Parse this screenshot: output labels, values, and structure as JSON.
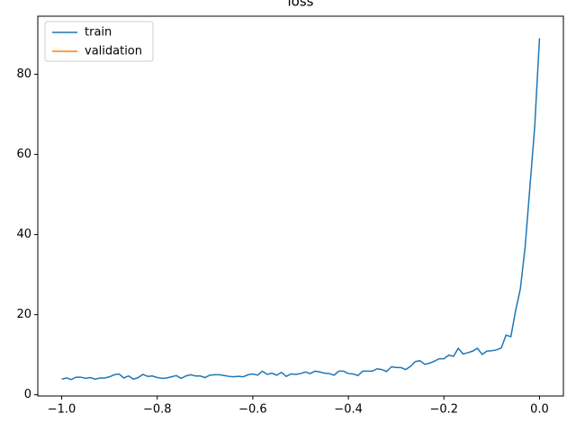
{
  "chart_data": {
    "type": "line",
    "title": "loss",
    "x": [
      -1.0,
      -0.99,
      -0.98,
      -0.97,
      -0.96,
      -0.95,
      -0.94,
      -0.93,
      -0.92,
      -0.91,
      -0.9,
      -0.89,
      -0.88,
      -0.87,
      -0.86,
      -0.85,
      -0.84,
      -0.83,
      -0.82,
      -0.81,
      -0.8,
      -0.79,
      -0.78,
      -0.77,
      -0.76,
      -0.75,
      -0.74,
      -0.73,
      -0.72,
      -0.71,
      -0.7,
      -0.69,
      -0.68,
      -0.67,
      -0.66,
      -0.65,
      -0.64,
      -0.63,
      -0.62,
      -0.61,
      -0.6,
      -0.59,
      -0.58,
      -0.57,
      -0.56,
      -0.55,
      -0.54,
      -0.53,
      -0.52,
      -0.51,
      -0.5,
      -0.49,
      -0.48,
      -0.47,
      -0.46,
      -0.45,
      -0.44,
      -0.43,
      -0.42,
      -0.41,
      -0.4,
      -0.39,
      -0.38,
      -0.37,
      -0.36,
      -0.35,
      -0.34,
      -0.33,
      -0.32,
      -0.31,
      -0.3,
      -0.29,
      -0.28,
      -0.27,
      -0.26,
      -0.25,
      -0.24,
      -0.23,
      -0.22,
      -0.21,
      -0.2,
      -0.19,
      -0.18,
      -0.17,
      -0.16,
      -0.15,
      -0.14,
      -0.13,
      -0.12,
      -0.11,
      -0.1,
      -0.09,
      -0.08,
      -0.07,
      -0.06,
      -0.05,
      -0.04,
      -0.03,
      -0.02,
      -0.01,
      0.0
    ],
    "series": [
      {
        "name": "train",
        "color": "#1f77b4",
        "values": [
          3.9,
          4.2,
          3.8,
          4.4,
          4.4,
          4.1,
          4.3,
          3.9,
          4.2,
          4.2,
          4.5,
          5.0,
          5.2,
          4.2,
          4.7,
          3.9,
          4.3,
          5.1,
          4.6,
          4.7,
          4.3,
          4.1,
          4.2,
          4.5,
          4.8,
          4.1,
          4.7,
          5.0,
          4.7,
          4.7,
          4.3,
          4.9,
          5.0,
          5.0,
          4.8,
          4.6,
          4.5,
          4.6,
          4.5,
          5.0,
          5.2,
          4.9,
          5.9,
          5.1,
          5.4,
          4.9,
          5.6,
          4.6,
          5.2,
          5.1,
          5.3,
          5.7,
          5.3,
          5.9,
          5.7,
          5.4,
          5.3,
          4.9,
          5.9,
          5.9,
          5.3,
          5.2,
          4.8,
          5.9,
          5.9,
          5.9,
          6.5,
          6.3,
          5.8,
          7.0,
          6.8,
          6.8,
          6.3,
          7.1,
          8.3,
          8.5,
          7.6,
          7.9,
          8.4,
          9.0,
          9.0,
          9.9,
          9.6,
          11.6,
          10.2,
          10.5,
          10.9,
          11.6,
          10.1,
          10.9,
          11.0,
          11.2,
          11.7,
          14.9,
          14.5,
          21.0,
          26.5,
          37.0,
          52.0,
          67.0,
          89.0
        ]
      },
      {
        "name": "validation",
        "color": "#ff7f0e",
        "values": [
          null,
          null,
          null,
          null,
          null,
          null,
          null,
          null,
          null,
          null,
          null,
          null,
          null,
          null,
          null,
          null,
          null,
          null,
          null,
          null,
          null,
          null,
          null,
          null,
          null,
          null,
          null,
          null,
          null,
          null,
          null,
          null,
          null,
          null,
          null,
          null,
          null,
          null,
          null,
          null,
          null,
          null,
          null,
          null,
          null,
          null,
          null,
          null,
          null,
          null,
          null,
          null,
          null,
          null,
          null,
          null,
          null,
          null,
          null,
          null,
          null,
          null,
          null,
          null,
          null,
          null,
          null,
          null,
          null,
          null,
          null,
          null,
          null,
          null,
          null,
          null,
          null,
          null,
          null,
          null,
          null,
          null,
          null,
          null,
          null,
          null,
          null,
          null,
          null,
          null,
          null,
          null,
          null,
          null,
          null,
          null,
          null,
          null,
          null,
          null,
          null
        ]
      }
    ],
    "xlim": [
      -1.05,
      0.05
    ],
    "xticks": [
      {
        "value": -1.0,
        "label": "−1.0"
      },
      {
        "value": -0.8,
        "label": "−0.8"
      },
      {
        "value": -0.6,
        "label": "−0.6"
      },
      {
        "value": -0.4,
        "label": "−0.4"
      },
      {
        "value": -0.2,
        "label": "−0.2"
      },
      {
        "value": 0.0,
        "label": "0.0"
      }
    ],
    "ylim": [
      -0.3,
      94.5
    ],
    "yticks": [
      0,
      20,
      40,
      60,
      80
    ],
    "legend": "upper left"
  }
}
